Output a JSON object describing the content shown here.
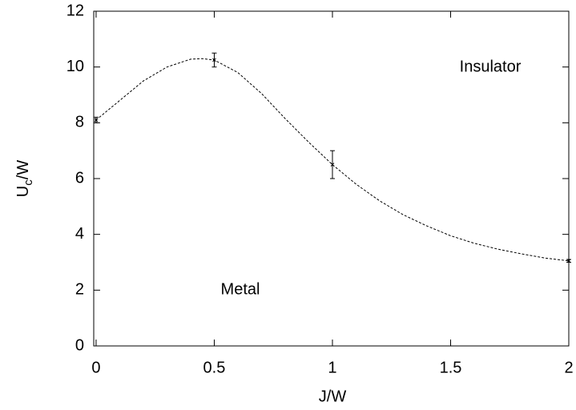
{
  "chart_data": {
    "type": "line",
    "xlabel": "J/W",
    "ylabel": [
      "U",
      "c",
      "/W"
    ],
    "xlim": [
      -0.01,
      2
    ],
    "ylim": [
      0,
      12
    ],
    "xticks": [
      0,
      0.5,
      1,
      1.5,
      2
    ],
    "yticks": [
      0,
      2,
      4,
      6,
      8,
      10,
      12
    ],
    "annotations": [
      "Insulator",
      "Metal"
    ],
    "series": [
      {
        "style": "errorbar",
        "color": "#000000",
        "x": [
          0,
          0.5,
          1,
          2
        ],
        "values": [
          8.1,
          10.25,
          6.5,
          3.05
        ],
        "errors": [
          0.1,
          0.25,
          0.5,
          0.05
        ]
      },
      {
        "style": "dashed",
        "color": "#000000",
        "x": [
          0,
          0.1,
          0.2,
          0.3,
          0.4,
          0.45,
          0.5,
          0.6,
          0.7,
          0.8,
          0.9,
          1.0,
          1.1,
          1.2,
          1.3,
          1.4,
          1.5,
          1.6,
          1.7,
          1.8,
          1.9,
          2.0
        ],
        "values": [
          8.1,
          8.8,
          9.5,
          10.0,
          10.28,
          10.3,
          10.25,
          9.8,
          9.05,
          8.15,
          7.3,
          6.5,
          5.8,
          5.2,
          4.7,
          4.3,
          3.95,
          3.68,
          3.47,
          3.3,
          3.15,
          3.05
        ]
      }
    ]
  }
}
